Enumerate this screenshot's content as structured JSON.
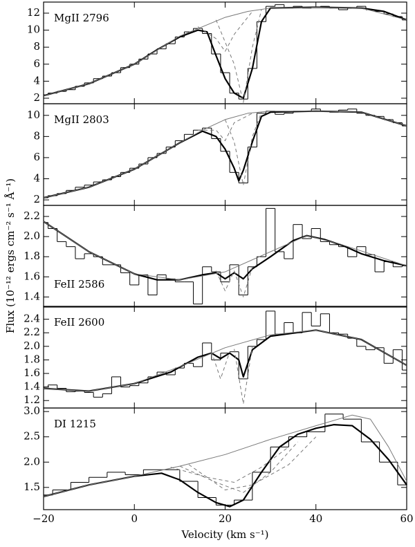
{
  "ylabel": "Flux (10⁻¹² ergs cm⁻² s⁻¹ Å⁻¹)",
  "chart_data": [
    {
      "type": "line",
      "label": "MgII 2796",
      "label_position": "upper left",
      "xlim": [
        -20,
        60
      ],
      "ylim": [
        1.35,
        13.3
      ],
      "yticks": [
        2,
        4,
        6,
        8,
        10,
        12
      ],
      "series": [
        {
          "style": "step",
          "color": "#000000",
          "width": 1,
          "x": [
            -20,
            -18,
            -16,
            -14,
            -12,
            -10,
            -8,
            -6,
            -4,
            -2,
            0,
            2,
            4,
            6,
            8,
            10,
            12,
            14,
            16,
            18,
            20,
            22,
            24,
            26,
            28,
            30,
            32,
            34,
            36,
            38,
            40,
            42,
            44,
            46,
            48,
            50,
            52,
            54,
            56,
            58,
            60
          ],
          "values": [
            2.4,
            2.6,
            2.8,
            3.0,
            3.4,
            3.8,
            4.3,
            4.6,
            5.0,
            5.6,
            6.0,
            6.6,
            7.2,
            7.8,
            8.4,
            9.2,
            9.8,
            10.2,
            9.6,
            7.2,
            5.0,
            2.6,
            1.9,
            5.5,
            11.0,
            12.8,
            13.0,
            12.6,
            12.8,
            12.6,
            12.7,
            12.8,
            12.6,
            12.4,
            12.6,
            12.8,
            12.4,
            12.2,
            11.9,
            11.6,
            11.2
          ]
        },
        {
          "style": "solid",
          "color": "#000000",
          "width": 2.2,
          "x": [
            -20,
            -10,
            0,
            5,
            10,
            14,
            16,
            18,
            20,
            22,
            24,
            26,
            28,
            30,
            40,
            50,
            55,
            60
          ],
          "values": [
            2.3,
            3.7,
            6.0,
            7.7,
            9.2,
            10.0,
            9.8,
            7.0,
            4.3,
            2.6,
            2.0,
            5.5,
            11.0,
            12.6,
            12.7,
            12.6,
            12.2,
            11.2
          ]
        },
        {
          "style": "solid",
          "color": "#777777",
          "width": 1,
          "x": [
            -20,
            -10,
            0,
            10,
            15,
            20,
            25,
            30,
            40,
            50,
            60
          ],
          "values": [
            2.3,
            3.7,
            6.0,
            9.3,
            10.4,
            11.5,
            12.2,
            12.6,
            12.7,
            12.6,
            11.2
          ]
        },
        {
          "style": "dashed",
          "color": "#777777",
          "width": 1,
          "x": [
            14,
            18,
            20,
            22,
            26
          ],
          "values": [
            10.4,
            9.0,
            7.5,
            9.5,
            12.2
          ]
        },
        {
          "style": "dashed",
          "color": "#777777",
          "width": 1,
          "x": [
            18,
            22,
            24,
            26,
            28
          ],
          "values": [
            11.2,
            6.0,
            1.5,
            8.0,
            12.4
          ]
        }
      ]
    },
    {
      "type": "line",
      "label": "MgII 2803",
      "label_position": "upper left",
      "xlim": [
        -20,
        60
      ],
      "ylim": [
        1.48,
        11.1
      ],
      "yticks": [
        2,
        4,
        6,
        8,
        10
      ],
      "series": [
        {
          "style": "step",
          "color": "#000000",
          "width": 1,
          "x": [
            -20,
            -18,
            -16,
            -14,
            -12,
            -10,
            -8,
            -6,
            -4,
            -2,
            0,
            2,
            4,
            6,
            8,
            10,
            12,
            14,
            16,
            18,
            20,
            22,
            24,
            26,
            28,
            30,
            32,
            34,
            36,
            38,
            40,
            42,
            44,
            46,
            48,
            50,
            52,
            54,
            56,
            58,
            60
          ],
          "values": [
            2.2,
            2.4,
            2.6,
            2.9,
            3.2,
            3.4,
            3.7,
            3.9,
            4.2,
            4.6,
            5.0,
            5.4,
            6.0,
            6.4,
            7.0,
            7.6,
            8.2,
            8.6,
            8.8,
            7.8,
            6.6,
            4.6,
            3.6,
            7.0,
            10.2,
            10.4,
            10.1,
            10.2,
            10.4,
            10.4,
            10.6,
            10.4,
            10.3,
            10.5,
            10.6,
            10.2,
            10.0,
            9.9,
            9.6,
            9.3,
            9.0
          ]
        },
        {
          "style": "solid",
          "color": "#000000",
          "width": 2.2,
          "x": [
            -20,
            -10,
            0,
            10,
            15,
            18,
            20,
            22,
            23,
            24,
            26,
            28,
            30,
            40,
            50,
            60
          ],
          "values": [
            2.2,
            3.2,
            4.9,
            7.4,
            8.5,
            8.0,
            6.8,
            5.0,
            3.8,
            4.8,
            7.5,
            9.9,
            10.3,
            10.4,
            10.3,
            9.0
          ]
        },
        {
          "style": "solid",
          "color": "#777777",
          "width": 1,
          "x": [
            -20,
            -10,
            0,
            10,
            15,
            20,
            25,
            30,
            40,
            50,
            60
          ],
          "values": [
            2.2,
            3.2,
            4.9,
            7.4,
            8.6,
            9.6,
            10.2,
            10.4,
            10.4,
            10.3,
            9.0
          ]
        },
        {
          "style": "dashed",
          "color": "#777777",
          "width": 1,
          "x": [
            14,
            18,
            20,
            22,
            26
          ],
          "values": [
            8.6,
            8.6,
            7.6,
            9.3,
            10.2
          ]
        },
        {
          "style": "dashed",
          "color": "#777777",
          "width": 1,
          "x": [
            20,
            22,
            24,
            26,
            28
          ],
          "values": [
            9.6,
            7.5,
            3.4,
            8.0,
            10.3
          ]
        }
      ]
    },
    {
      "type": "line",
      "label": "FeII 2586",
      "label_position": "lower left",
      "xlim": [
        -20,
        60
      ],
      "ylim": [
        1.3,
        2.31
      ],
      "yticks": [
        1.4,
        1.6,
        1.8,
        {
          "value": 2.0,
          "label": "2.0"
        },
        2.2
      ],
      "series": [
        {
          "style": "step",
          "color": "#000000",
          "width": 1,
          "x": [
            -20,
            -18,
            -16,
            -14,
            -12,
            -10,
            -8,
            -6,
            -4,
            -2,
            0,
            2,
            4,
            6,
            8,
            10,
            12,
            14,
            16,
            18,
            20,
            22,
            24,
            26,
            28,
            30,
            32,
            34,
            36,
            38,
            40,
            42,
            44,
            46,
            48,
            50,
            52,
            54,
            56,
            58,
            60
          ],
          "values": [
            2.14,
            2.08,
            1.95,
            1.9,
            1.78,
            1.83,
            1.8,
            1.72,
            1.72,
            1.64,
            1.52,
            1.62,
            1.42,
            1.62,
            1.58,
            1.55,
            1.55,
            1.33,
            1.7,
            1.65,
            1.55,
            1.72,
            1.42,
            1.7,
            1.8,
            2.28,
            1.85,
            1.78,
            2.12,
            1.98,
            2.08,
            1.95,
            1.92,
            1.9,
            1.8,
            1.9,
            1.82,
            1.65,
            1.75,
            1.7,
            1.71
          ]
        },
        {
          "style": "solid",
          "color": "#000000",
          "width": 2.2,
          "x": [
            -20,
            -10,
            0,
            5,
            10,
            15,
            18,
            20,
            22,
            24,
            26,
            30,
            35,
            38,
            42,
            46,
            50,
            55,
            60
          ],
          "values": [
            2.15,
            1.85,
            1.63,
            1.57,
            1.57,
            1.62,
            1.64,
            1.58,
            1.64,
            1.58,
            1.68,
            1.8,
            1.96,
            2.01,
            1.97,
            1.91,
            1.83,
            1.76,
            1.71
          ]
        },
        {
          "style": "solid",
          "color": "#777777",
          "width": 1,
          "x": [
            -20,
            -10,
            0,
            10,
            20,
            30,
            38,
            45,
            60
          ],
          "values": [
            2.15,
            1.85,
            1.63,
            1.57,
            1.65,
            1.85,
            2.01,
            1.93,
            1.71
          ]
        },
        {
          "style": "dashed",
          "color": "#777777",
          "width": 1,
          "x": [
            18,
            20,
            22
          ],
          "values": [
            1.66,
            1.46,
            1.66
          ]
        },
        {
          "style": "dashed",
          "color": "#777777",
          "width": 1,
          "x": [
            22,
            24,
            26
          ],
          "values": [
            1.66,
            1.4,
            1.7
          ]
        }
      ]
    },
    {
      "type": "line",
      "label": "FeII 2600",
      "label_position": "upper left",
      "xlim": [
        -20,
        60
      ],
      "ylim": [
        1.09,
        2.59
      ],
      "yticks": [
        1.2,
        1.4,
        1.6,
        1.8,
        {
          "value": 2.0,
          "label": "2.0"
        },
        2.2,
        2.4
      ],
      "series": [
        {
          "style": "step",
          "color": "#000000",
          "width": 1,
          "x": [
            -20,
            -18,
            -16,
            -14,
            -12,
            -10,
            -8,
            -6,
            -4,
            -2,
            0,
            2,
            4,
            6,
            8,
            10,
            12,
            14,
            16,
            18,
            20,
            22,
            24,
            26,
            28,
            30,
            32,
            34,
            36,
            38,
            40,
            42,
            44,
            46,
            48,
            50,
            52,
            54,
            56,
            58,
            60
          ],
          "values": [
            1.4,
            1.43,
            1.38,
            1.33,
            1.34,
            1.32,
            1.25,
            1.3,
            1.55,
            1.4,
            1.42,
            1.46,
            1.55,
            1.62,
            1.58,
            1.68,
            1.75,
            1.7,
            2.05,
            1.8,
            1.9,
            1.92,
            1.52,
            2.0,
            2.1,
            2.52,
            2.18,
            2.35,
            2.2,
            2.5,
            2.3,
            2.48,
            2.2,
            2.18,
            2.12,
            2.0,
            1.95,
            1.98,
            1.75,
            1.95,
            1.65
          ]
        },
        {
          "style": "solid",
          "color": "#000000",
          "width": 2.2,
          "x": [
            -20,
            -10,
            0,
            8,
            14,
            17,
            19,
            21,
            23,
            24,
            26,
            30,
            40,
            50,
            60
          ],
          "values": [
            1.38,
            1.34,
            1.45,
            1.62,
            1.84,
            1.9,
            1.82,
            1.9,
            1.8,
            1.55,
            1.95,
            2.15,
            2.24,
            2.1,
            1.72
          ]
        },
        {
          "style": "solid",
          "color": "#777777",
          "width": 1,
          "x": [
            -20,
            -10,
            0,
            10,
            20,
            30,
            40,
            50,
            60
          ],
          "values": [
            1.38,
            1.34,
            1.45,
            1.7,
            1.98,
            2.17,
            2.24,
            2.1,
            1.72
          ]
        },
        {
          "style": "dashed",
          "color": "#777777",
          "width": 1,
          "x": [
            17,
            19,
            21
          ],
          "values": [
            1.92,
            1.52,
            1.92
          ]
        },
        {
          "style": "dashed",
          "color": "#777777",
          "width": 1,
          "x": [
            22,
            24,
            26
          ],
          "values": [
            1.96,
            1.15,
            2.0
          ]
        }
      ]
    },
    {
      "type": "line",
      "label": "DI 1215",
      "label_position": "upper left",
      "xlim": [
        -20,
        60
      ],
      "ylim": [
        1.06,
        3.07
      ],
      "yticks": [
        1.5,
        {
          "value": 2.0,
          "label": "2.0"
        },
        2.5,
        {
          "value": 3.0,
          "label": "3.0"
        }
      ],
      "xticks": [
        {
          "value": -20,
          "label": "−20"
        },
        0,
        20,
        40,
        60
      ],
      "xlabel": "Velocity (km s⁻¹)",
      "series": [
        {
          "style": "step",
          "color": "#000000",
          "width": 1,
          "x": [
            -20,
            -16,
            -12,
            -8,
            -4,
            0,
            4,
            8,
            12,
            16,
            20,
            24,
            28,
            32,
            36,
            40,
            44,
            48,
            52,
            56,
            60
          ],
          "values": [
            1.35,
            1.45,
            1.6,
            1.7,
            1.8,
            1.75,
            1.85,
            1.85,
            1.62,
            1.3,
            1.15,
            1.25,
            1.8,
            2.3,
            2.5,
            2.6,
            2.95,
            2.85,
            2.4,
            2.0,
            1.55
          ]
        },
        {
          "style": "solid",
          "color": "#000000",
          "width": 2.2,
          "x": [
            -20,
            -10,
            0,
            6,
            10,
            14,
            18,
            21,
            24,
            28,
            32,
            36,
            40,
            44,
            48,
            52,
            56,
            60
          ],
          "values": [
            1.32,
            1.55,
            1.72,
            1.78,
            1.65,
            1.4,
            1.2,
            1.12,
            1.25,
            1.8,
            2.3,
            2.55,
            2.67,
            2.74,
            2.72,
            2.45,
            2.05,
            1.55
          ]
        },
        {
          "style": "solid",
          "color": "#777777",
          "width": 1,
          "x": [
            -20,
            -10,
            0,
            10,
            20,
            30,
            40,
            48,
            52,
            56,
            60
          ],
          "values": [
            1.32,
            1.55,
            1.72,
            1.92,
            2.15,
            2.45,
            2.72,
            2.93,
            2.85,
            2.3,
            1.62
          ]
        },
        {
          "style": "dashed",
          "color": "#777777",
          "width": 1,
          "x": [
            8,
            16,
            22,
            28,
            34
          ],
          "values": [
            1.9,
            1.7,
            1.6,
            1.9,
            2.3
          ]
        },
        {
          "style": "dashed",
          "color": "#777777",
          "width": 1,
          "x": [
            10,
            18,
            24,
            30,
            36
          ],
          "values": [
            1.92,
            1.6,
            1.4,
            1.8,
            2.4
          ]
        },
        {
          "style": "dashed",
          "color": "#777777",
          "width": 1,
          "x": [
            12,
            20,
            26,
            34,
            40
          ],
          "values": [
            1.95,
            1.45,
            1.55,
            1.95,
            2.5
          ]
        }
      ]
    }
  ]
}
